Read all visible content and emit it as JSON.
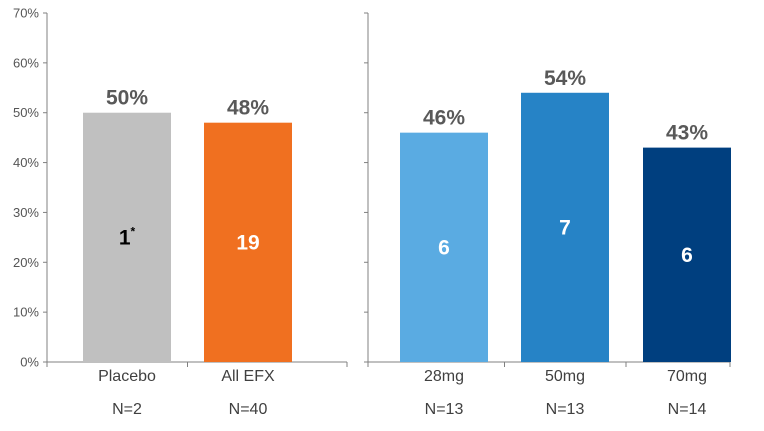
{
  "chart_data": [
    {
      "type": "bar",
      "ylim": [
        0,
        70
      ],
      "yticks": [
        0,
        10,
        20,
        30,
        40,
        50,
        60,
        70
      ],
      "ytick_labels": [
        "0%",
        "10%",
        "20%",
        "30%",
        "40%",
        "50%",
        "60%",
        "70%"
      ],
      "grid": false,
      "categories": [
        "Placebo",
        "All EFX"
      ],
      "category_sublabels": [
        "N=2",
        "N=40"
      ],
      "values": [
        50,
        48
      ],
      "value_labels": [
        "50%",
        "48%"
      ],
      "inner_labels": [
        "1",
        "19"
      ],
      "inner_label_superscripts": [
        "*",
        ""
      ],
      "colors": [
        "#c0c0c0",
        "#f07020"
      ],
      "inner_label_colors": [
        "#000000",
        "#ffffff"
      ]
    },
    {
      "type": "bar",
      "ylim": [
        0,
        70
      ],
      "yticks": [
        0,
        10,
        20,
        30,
        40,
        50,
        60,
        70
      ],
      "grid": false,
      "categories": [
        "28mg",
        "50mg",
        "70mg"
      ],
      "category_sublabels": [
        "N=13",
        "N=13",
        "N=14"
      ],
      "values": [
        46,
        54,
        43
      ],
      "value_labels": [
        "46%",
        "54%",
        "43%"
      ],
      "inner_labels": [
        "6",
        "7",
        "6"
      ],
      "inner_label_superscripts": [
        "",
        "",
        ""
      ],
      "colors": [
        "#5aabe2",
        "#2683c6",
        "#003f7f"
      ],
      "inner_label_colors": [
        "#ffffff",
        "#ffffff",
        "#ffffff"
      ]
    }
  ]
}
